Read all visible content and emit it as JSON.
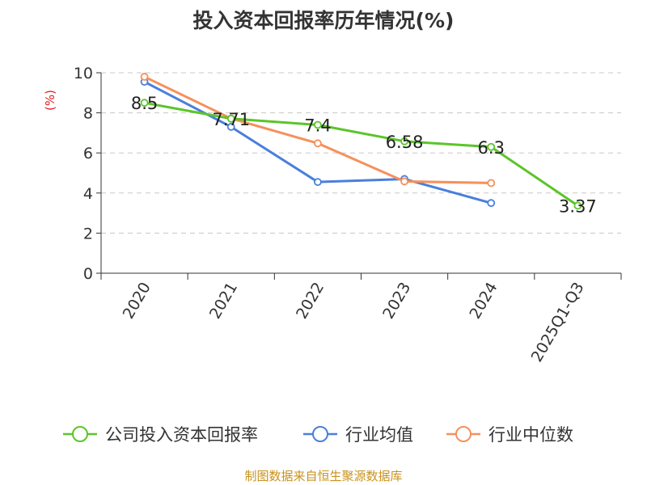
{
  "title": "投入资本回报率历年情况(%)",
  "source": "制图数据来自恒生聚源数据库",
  "chart_data": {
    "type": "line",
    "title": "投入资本回报率历年情况(%)",
    "ylabel": "(%)",
    "xlabel": "",
    "ylim": [
      0,
      10
    ],
    "yticks": [
      0,
      2,
      4,
      6,
      8,
      10
    ],
    "grid": true,
    "legend_position": "bottom",
    "categories": [
      "2020",
      "2021",
      "2022",
      "2023",
      "2024",
      "2025Q1-Q3"
    ],
    "series": [
      {
        "name": "公司投入资本回报率",
        "color": "#5bc52a",
        "values": [
          8.5,
          7.71,
          7.4,
          6.58,
          6.3,
          3.37
        ],
        "labels": [
          "8.5",
          "7.71",
          "7.4",
          "6.58",
          "6.3",
          "3.37"
        ]
      },
      {
        "name": "行业均值",
        "color": "#4a7fdc",
        "values": [
          9.55,
          7.3,
          4.55,
          4.7,
          3.5,
          null
        ]
      },
      {
        "name": "行业中位数",
        "color": "#f6905a",
        "values": [
          9.8,
          7.72,
          6.48,
          4.58,
          4.5,
          null
        ]
      }
    ]
  }
}
